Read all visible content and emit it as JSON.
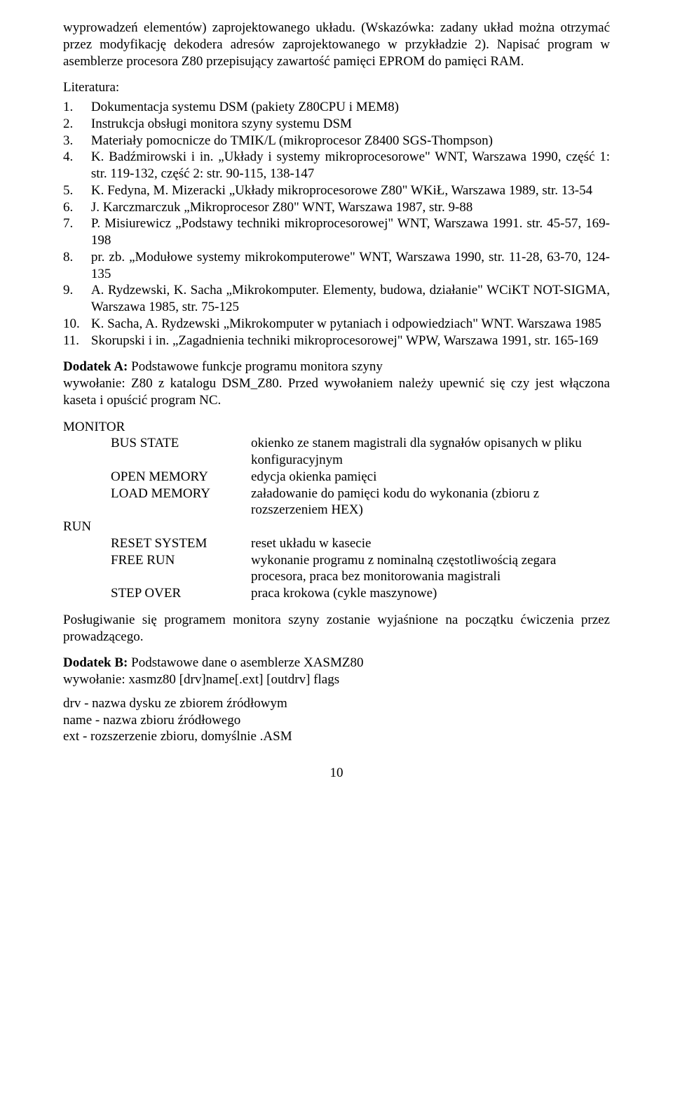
{
  "intro": {
    "p1": "wyprowadzeń elementów) zaprojektowanego układu. (Wskazówka: zadany układ można otrzymać przez modyfikację dekodera adresów zaprojektowanego w przykładzie 2). Napisać program w asemblerze procesora Z80 przepisujący zawartość pamięci EPROM do pamięci RAM."
  },
  "lit": {
    "heading": "Literatura:",
    "items": [
      {
        "n": "1.",
        "t": "Dokumentacja systemu DSM (pakiety Z80CPU i MEM8)"
      },
      {
        "n": "2.",
        "t": "Instrukcja obsługi monitora szyny systemu DSM"
      },
      {
        "n": "3.",
        "t": "Materiały pomocnicze do TMIK/L (mikroprocesor Z8400 SGS-Thompson)"
      },
      {
        "n": "4.",
        "t": "K. Badźmirowski i in. „Układy i systemy mikroprocesorowe\" WNT, Warszawa 1990, część 1: str. 119-132, część 2: str. 90-115, 138-147"
      },
      {
        "n": "5.",
        "t": "K. Fedyna, M. Mizeracki „Układy mikroprocesorowe Z80\" WKiŁ, Warszawa 1989, str. 13-54"
      },
      {
        "n": "6.",
        "t": "J. Karczmarczuk „Mikroprocesor Z80\" WNT, Warszawa 1987, str. 9-88"
      },
      {
        "n": "7.",
        "t": "P. Misiurewicz „Podstawy techniki mikroprocesorowej\" WNT, Warszawa 1991. str. 45-57, 169-198"
      },
      {
        "n": "8.",
        "t": "pr. zb. „Modułowe systemy mikrokomputerowe\" WNT, Warszawa 1990, str. 11-28, 63-70, 124-135"
      },
      {
        "n": "9.",
        "t": "A. Rydzewski, K. Sacha „Mikrokomputer. Elementy, budowa, działanie\" WCiKT NOT-SIGMA, Warszawa 1985, str. 75-125"
      },
      {
        "n": "10.",
        "t": "K. Sacha, A. Rydzewski „Mikrokomputer w pytaniach i odpowiedziach\" WNT. Warszawa 1985"
      },
      {
        "n": "11.",
        "t": "Skorupski i in. „Zagadnienia techniki mikroprocesorowej\" WPW, Warszawa 1991, str. 165-169"
      }
    ]
  },
  "dodatekA": {
    "label": "Dodatek A:",
    "title_rest": " Podstawowe funkcje programu monitora szyny",
    "lead": "wywołanie: Z80 z katalogu DSM_Z80. Przed wywołaniem należy upewnić się czy jest włączona kaseta i opuścić program NC.",
    "groups": [
      {
        "group": "MONITOR",
        "rows": [
          {
            "k": "BUS STATE",
            "v": "okienko ze stanem magistrali dla sygnałów opisanych w pliku konfiguracyjnym"
          },
          {
            "k": "OPEN MEMORY",
            "v": "edycja okienka pamięci"
          },
          {
            "k": "LOAD MEMORY",
            "v": "załadowanie do pamięci kodu do wykonania (zbioru z rozszerzeniem HEX)"
          }
        ]
      },
      {
        "group": "RUN",
        "rows": [
          {
            "k": "RESET SYSTEM",
            "v": "reset układu w kasecie"
          },
          {
            "k": "FREE RUN",
            "v": "wykonanie programu z nominalną częstotliwością zegara procesora, praca bez monitorowania magistrali"
          },
          {
            "k": "STEP OVER",
            "v": "praca krokowa (cykle maszynowe)"
          }
        ]
      }
    ],
    "tail": "Posługiwanie się programem monitora szyny zostanie wyjaśnione na początku ćwiczenia przez prowadzącego."
  },
  "dodatekB": {
    "label": "Dodatek B:",
    "title_rest": " Podstawowe dane o asemblerze XASMZ80",
    "line1": "wywołanie: xasmz80 [drv]name[.ext] [outdrv] flags",
    "lines": [
      "drv - nazwa dysku ze zbiorem źródłowym",
      "name - nazwa zbioru źródłowego",
      "ext - rozszerzenie zbioru, domyślnie .ASM"
    ]
  },
  "page_number": "10"
}
